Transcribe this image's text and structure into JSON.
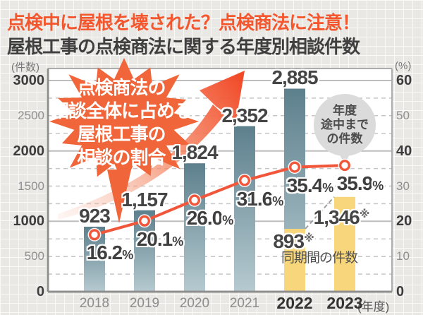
{
  "header": {
    "title": "点検中に屋根を壊された？点検商法に注意！",
    "subtitle": "屋根工事の点検商法に関する年度別相談件数"
  },
  "burst": {
    "lines": [
      "点検商法の",
      "相談全体に占める",
      "屋根工事の",
      "相談の割合"
    ]
  },
  "balloon": {
    "lines": [
      "年度",
      "途中まで",
      "の件数"
    ]
  },
  "colors": {
    "accent_orange": "#f4572e",
    "burst_orange": "#f0653a",
    "trend_line": "#f2563a",
    "bar_teal_top": "#5d808d",
    "bar_teal_bottom": "#b6cad0",
    "bar_yellow": "#f8d77c",
    "balloon_gray": "#dbdbdb"
  },
  "chart_data": {
    "type": "combo_bar_line",
    "title": "屋根工事の点検商法に関する年度別相談件数",
    "categories": [
      "2018",
      "2019",
      "2020",
      "2021",
      "2022",
      "2023"
    ],
    "bar_series": {
      "name": "屋根工事の点検商法に関する相談件数",
      "values": [
        923,
        1157,
        1824,
        2352,
        2885,
        1346
      ],
      "display": [
        "923",
        "1,157",
        "1,824",
        "2,352",
        "2,885",
        "1,346"
      ],
      "marks": [
        "",
        "",
        "",
        "",
        "",
        "※"
      ],
      "full_year": [
        true,
        true,
        true,
        true,
        true,
        false
      ]
    },
    "partial_2022": {
      "value": 893,
      "display": "893",
      "mark": "※",
      "note": "同期間の件数"
    },
    "line_series": {
      "name": "点検商法の相談全体に占める屋根工事の相談の割合",
      "unit": "%",
      "values": [
        16.2,
        20.1,
        26.0,
        31.6,
        35.4,
        35.9
      ],
      "display": [
        "16.2",
        "20.1",
        "26.0",
        "31.6",
        "35.4",
        "35.9"
      ]
    },
    "left_axis": {
      "unit": "(件数)",
      "min": 0,
      "max": 3000,
      "tick_step": 500,
      "gridline_step": 250
    },
    "right_axis": {
      "unit": "(%)",
      "min": 0,
      "max": 60,
      "tick_step": 10
    },
    "x_axis": {
      "unit": "(年度)",
      "emphasized": [
        "2022",
        "2023"
      ]
    },
    "annotation_balloon": "年度途中までの件数"
  }
}
